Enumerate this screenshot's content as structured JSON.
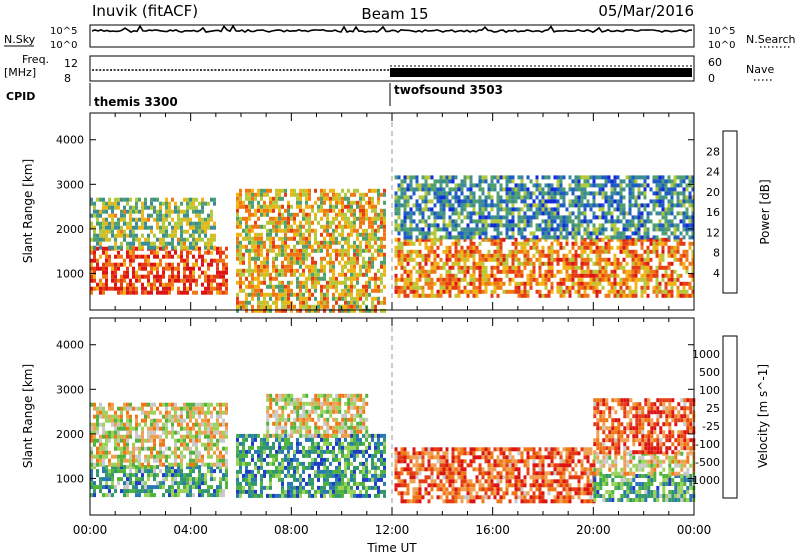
{
  "header": {
    "station": "Inuvik (fitACF)",
    "beam": "Beam 15",
    "date": "05/Mar/2016"
  },
  "status_panels": {
    "nsky_label": "N.Sky",
    "nsearch_label": "N.Search",
    "noise_ticks": [
      "10^5",
      "10^0"
    ],
    "freq_label_line1": "Freq.",
    "freq_label_line2": "[MHz]",
    "freq_ticks": [
      "12",
      "8"
    ],
    "nave_label": "Nave",
    "nave_ticks": [
      "60",
      "0"
    ],
    "cpid_label": "CPID",
    "cpid_modes": [
      {
        "name": "themis 3300",
        "start_hour": 0
      },
      {
        "name": "twofsound 3503",
        "start_hour": 12
      }
    ]
  },
  "chart_data": [
    {
      "type": "heatmap",
      "title": "",
      "xlabel": "Time UT",
      "ylabel": "Slant Range [km]",
      "x_ticks": [
        "00:00",
        "04:00",
        "08:00",
        "12:00",
        "16:00",
        "20:00",
        "00:00"
      ],
      "xlim_hours": [
        0,
        24
      ],
      "ylim": [
        180,
        4600
      ],
      "y_ticks": [
        1000,
        2000,
        3000,
        4000
      ],
      "colorbar_label": "Power [dB]",
      "colorbar_ticks": [
        4,
        8,
        12,
        16,
        20,
        24,
        28
      ],
      "colorbar_range": [
        0,
        32
      ],
      "colors": [
        "#1428dc",
        "#1e5ac8",
        "#3c8c96",
        "#50a06e",
        "#b4c83c",
        "#f0b414",
        "#f07814",
        "#e63c14",
        "#dc1414"
      ],
      "regions": [
        {
          "hours": [
            0.0,
            5.4
          ],
          "range_km": [
            600,
            1600
          ],
          "level": 0.85
        },
        {
          "hours": [
            0.0,
            5.0
          ],
          "range_km": [
            1600,
            2700
          ],
          "level": 0.45
        },
        {
          "hours": [
            5.8,
            11.7
          ],
          "range_km": [
            200,
            2900
          ],
          "level": 0.6
        },
        {
          "hours": [
            12.1,
            24.0
          ],
          "range_km": [
            500,
            1800
          ],
          "level": 0.7
        },
        {
          "hours": [
            12.1,
            24.0
          ],
          "range_km": [
            1800,
            3200
          ],
          "level": 0.3
        }
      ]
    },
    {
      "type": "heatmap",
      "title": "",
      "xlabel": "Time UT",
      "ylabel": "Slant Range [km]",
      "x_ticks": [
        "00:00",
        "04:00",
        "08:00",
        "12:00",
        "16:00",
        "20:00",
        "00:00"
      ],
      "xlim_hours": [
        0,
        24
      ],
      "ylim": [
        180,
        4600
      ],
      "y_ticks": [
        1000,
        2000,
        3000,
        4000
      ],
      "colorbar_label": "Velocity [m s^-1]",
      "colorbar_ticks": [
        "1000",
        "500",
        "100",
        "25",
        "-25",
        "-100",
        "-500",
        "-1000"
      ],
      "colors": [
        "#1e3cc8",
        "#2878b4",
        "#32966e",
        "#50b43c",
        "#9ad25a",
        "#c8c8c8",
        "#f0a050",
        "#f07814",
        "#e63c14",
        "#dc1414"
      ],
      "regions": [
        {
          "hours": [
            0.0,
            5.4
          ],
          "range_km": [
            600,
            1300
          ],
          "level": 0.3
        },
        {
          "hours": [
            0.0,
            5.4
          ],
          "range_km": [
            1300,
            2700
          ],
          "level": 0.55
        },
        {
          "hours": [
            5.8,
            11.7
          ],
          "range_km": [
            600,
            2000
          ],
          "level": 0.25
        },
        {
          "hours": [
            7.0,
            11.0
          ],
          "range_km": [
            2000,
            2900
          ],
          "level": 0.55
        },
        {
          "hours": [
            12.1,
            20.0
          ],
          "range_km": [
            500,
            1700
          ],
          "level": 0.8
        },
        {
          "hours": [
            20.0,
            24.0
          ],
          "range_km": [
            500,
            1100
          ],
          "level": 0.3
        },
        {
          "hours": [
            20.0,
            24.0
          ],
          "range_km": [
            1100,
            1600
          ],
          "level": 0.55
        },
        {
          "hours": [
            20.0,
            24.0
          ],
          "range_km": [
            1600,
            2800
          ],
          "level": 0.8
        }
      ]
    }
  ]
}
